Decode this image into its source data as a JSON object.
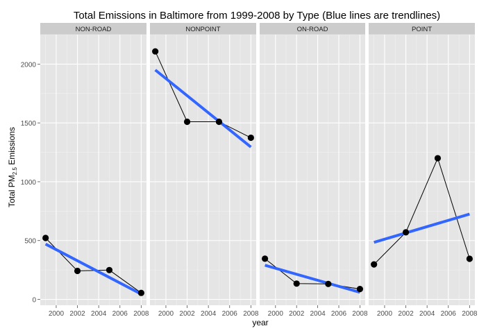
{
  "chart_data": {
    "type": "line",
    "title": "Total Emissions in Baltimore from 1999-2008 by Type (Blue lines are trendlines)",
    "xlabel": "year",
    "ylabel": {
      "main": "Total PM",
      "sub": "2.5",
      "tail": " Emissions"
    },
    "x": [
      1999,
      2002,
      2005,
      2008
    ],
    "xlim": [
      1998.5,
      2008.5
    ],
    "ylim": [
      -50,
      2250
    ],
    "x_ticks": [
      2000,
      2002,
      2004,
      2006,
      2008
    ],
    "y_ticks": [
      0,
      500,
      1000,
      1500,
      2000
    ],
    "grid": true,
    "facets": [
      {
        "name": "NON-ROAD",
        "values": [
          522,
          242,
          249,
          55
        ],
        "trend": [
          470,
          45
        ]
      },
      {
        "name": "NONPOINT",
        "values": [
          2108,
          1510,
          1510,
          1374
        ],
        "trend": [
          1950,
          1295
        ]
      },
      {
        "name": "ON-ROAD",
        "values": [
          346,
          134,
          131,
          88
        ],
        "trend": [
          290,
          60
        ]
      },
      {
        "name": "POINT",
        "values": [
          297,
          570,
          1200,
          345
        ],
        "trend": [
          485,
          725
        ]
      }
    ],
    "colors": {
      "trend": "#3366ff",
      "data": "#000000",
      "panel": "#e5e5e5",
      "strip": "#cccccc"
    }
  }
}
